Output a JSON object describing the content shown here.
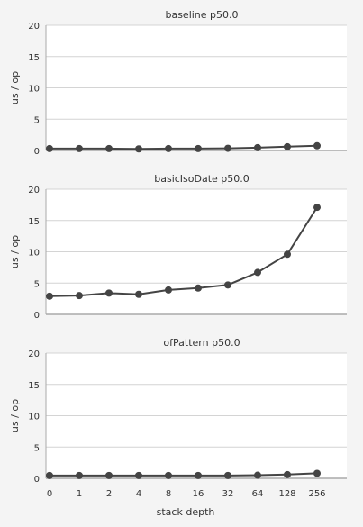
{
  "chart_data": [
    {
      "type": "line",
      "title": "baseline p50.0",
      "xlabel": "",
      "ylabel": "us / op",
      "categories": [
        "0",
        "1",
        "2",
        "4",
        "8",
        "16",
        "32",
        "64",
        "128",
        "256"
      ],
      "yticks": [
        "0",
        "5",
        "10",
        "15",
        "20"
      ],
      "ylim": [
        0,
        20
      ],
      "grid": true,
      "series": [
        {
          "values": [
            0.3,
            0.3,
            0.3,
            0.25,
            0.3,
            0.3,
            0.35,
            0.45,
            0.6,
            0.75
          ]
        }
      ]
    },
    {
      "type": "line",
      "title": "basicIsoDate p50.0",
      "xlabel": "",
      "ylabel": "us / op",
      "categories": [
        "0",
        "1",
        "2",
        "4",
        "8",
        "16",
        "32",
        "64",
        "128",
        "256"
      ],
      "yticks": [
        "0",
        "5",
        "10",
        "15",
        "20"
      ],
      "ylim": [
        0,
        20
      ],
      "grid": true,
      "series": [
        {
          "values": [
            2.9,
            3.0,
            3.4,
            3.2,
            3.9,
            4.2,
            4.7,
            6.7,
            9.6,
            17.1
          ]
        }
      ]
    },
    {
      "type": "line",
      "title": "ofPattern p50.0",
      "xlabel": "stack depth",
      "ylabel": "us / op",
      "categories": [
        "0",
        "1",
        "2",
        "4",
        "8",
        "16",
        "32",
        "64",
        "128",
        "256"
      ],
      "yticks": [
        "0",
        "5",
        "10",
        "15",
        "20"
      ],
      "ylim": [
        0,
        20
      ],
      "grid": true,
      "series": [
        {
          "values": [
            0.45,
            0.45,
            0.45,
            0.45,
            0.45,
            0.45,
            0.45,
            0.5,
            0.6,
            0.8
          ]
        }
      ]
    }
  ],
  "colors": {
    "background": "#f4f4f4",
    "plot_background": "#ffffff",
    "grid": "#d4d4d4",
    "axis": "#aaaaaa",
    "series": "#444444",
    "text": "#333333"
  }
}
